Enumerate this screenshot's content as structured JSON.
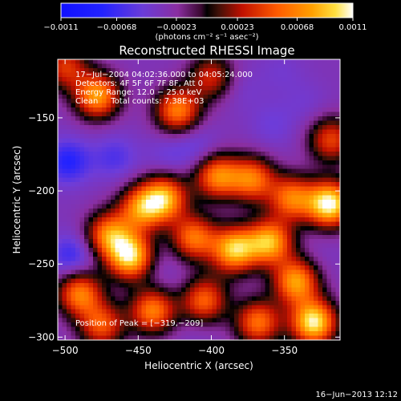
{
  "chart_data": {
    "type": "heatmap",
    "title": "Reconstructed RHESSI Image",
    "xlabel": "Heliocentric X (arcsec)",
    "ylabel": "Heliocentric Y (arcsec)",
    "xlim": [
      -505,
      -312
    ],
    "ylim": [
      -302,
      -110
    ],
    "xticks": [
      -500,
      -450,
      -400,
      -350
    ],
    "xtick_labels": [
      "−500",
      "−450",
      "−400",
      "−350"
    ],
    "yticks": [
      -150,
      -200,
      -250,
      -300
    ],
    "ytick_labels": [
      "−150",
      "−200",
      "−250",
      "−300"
    ],
    "annotations": [
      "17−Jul−2004 04:02:36.000 to 04:05:24.000",
      "Detectors: 4F 5F 6F 7F 8F, Att 0",
      "Energy Range: 12.0 − 25.0 keV",
      "Clean     Total counts: 7.38E+03"
    ],
    "peak_label": "Position of Peak = [−319,−209]",
    "peak": [
      -319,
      -209
    ],
    "colorbar": {
      "range": [
        -0.0011,
        0.0011
      ],
      "tick_values": [
        -0.0011,
        -0.00068,
        -0.00023,
        0.00023,
        0.00068,
        0.0011
      ],
      "tick_labels": [
        "−0.0011",
        "−0.00068",
        "−0.00023",
        "0.00023",
        "0.00068",
        "0.0011"
      ],
      "unit_label": "(photons cm⁻² s⁻¹ asec⁻²)"
    },
    "footer": "16−Jun−2013 12:12",
    "sources": [
      {
        "x": -478,
        "y": -135,
        "amp": 0.7
      },
      {
        "x": -423,
        "y": -145,
        "amp": 0.6
      },
      {
        "x": -432,
        "y": -205,
        "amp": 0.7
      },
      {
        "x": -448,
        "y": -212,
        "amp": 0.55
      },
      {
        "x": -455,
        "y": -245,
        "amp": 0.9
      },
      {
        "x": -490,
        "y": -270,
        "amp": 0.6
      },
      {
        "x": -396,
        "y": -190,
        "amp": 0.6
      },
      {
        "x": -372,
        "y": -192,
        "amp": 0.55
      },
      {
        "x": -345,
        "y": -205,
        "amp": 0.55
      },
      {
        "x": -319,
        "y": -209,
        "amp": 1.0
      },
      {
        "x": -412,
        "y": -232,
        "amp": 0.55
      },
      {
        "x": -384,
        "y": -240,
        "amp": 0.8
      },
      {
        "x": -360,
        "y": -235,
        "amp": 0.75
      },
      {
        "x": -342,
        "y": -262,
        "amp": 0.7
      },
      {
        "x": -330,
        "y": -290,
        "amp": 0.95
      },
      {
        "x": -368,
        "y": -290,
        "amp": 0.55
      },
      {
        "x": -440,
        "y": -282,
        "amp": 0.6
      },
      {
        "x": -405,
        "y": -275,
        "amp": 0.5
      },
      {
        "x": -475,
        "y": -292,
        "amp": 0.45
      },
      {
        "x": -318,
        "y": -165,
        "amp": 0.4
      },
      {
        "x": -470,
        "y": -230,
        "amp": 0.6
      },
      {
        "x": -500,
        "y": -115,
        "amp": 0.35
      },
      {
        "x": -400,
        "y": -122,
        "amp": 0.3
      },
      {
        "x": -358,
        "y": -155,
        "amp": -0.45
      },
      {
        "x": -380,
        "y": -130,
        "amp": -0.4
      },
      {
        "x": -395,
        "y": -255,
        "amp": -0.25
      },
      {
        "x": -498,
        "y": -180,
        "amp": -0.7
      },
      {
        "x": -466,
        "y": -177,
        "amp": -0.55
      },
      {
        "x": -430,
        "y": -175,
        "amp": -0.45
      },
      {
        "x": -410,
        "y": -170,
        "amp": -0.5
      },
      {
        "x": -495,
        "y": -245,
        "amp": -0.65
      },
      {
        "x": -440,
        "y": -250,
        "amp": -0.4
      },
      {
        "x": -425,
        "y": -262,
        "amp": -0.35
      },
      {
        "x": -335,
        "y": -140,
        "amp": -0.4
      },
      {
        "x": -325,
        "y": -245,
        "amp": -0.35
      },
      {
        "x": -410,
        "y": -298,
        "amp": -0.35
      },
      {
        "x": -352,
        "y": -118,
        "amp": -0.4
      }
    ]
  }
}
